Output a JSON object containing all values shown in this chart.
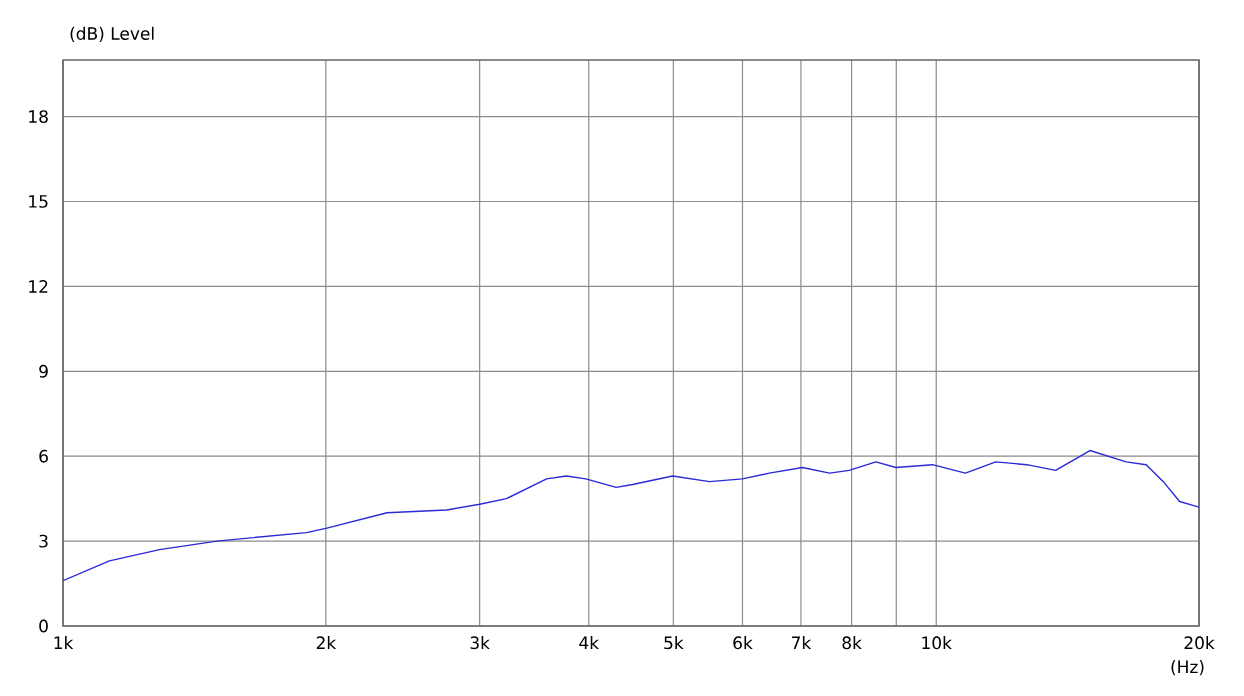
{
  "chart_data": {
    "type": "line",
    "xlabel": "(Hz)",
    "ylabel": "(dB)  Level",
    "log": "x",
    "grid": true,
    "xlim": [
      1000,
      20000
    ],
    "ylim": [
      0,
      20
    ],
    "xticks": [
      {
        "value": 1000,
        "label": "1k"
      },
      {
        "value": 2000,
        "label": "2k"
      },
      {
        "value": 3000,
        "label": "3k"
      },
      {
        "value": 4000,
        "label": "4k"
      },
      {
        "value": 5000,
        "label": "5k"
      },
      {
        "value": 6000,
        "label": "6k"
      },
      {
        "value": 7000,
        "label": "7k"
      },
      {
        "value": 8000,
        "label": "8k"
      },
      {
        "value": 9000,
        "label": null
      },
      {
        "value": 10000,
        "label": "10k"
      },
      {
        "value": 20000,
        "label": "20k"
      }
    ],
    "yticks": [
      0,
      3,
      6,
      9,
      12,
      15,
      18
    ],
    "series": [
      {
        "color": "#2a2ad8",
        "x": [
          1000,
          1130,
          1290,
          1500,
          1900,
          2000,
          2350,
          2750,
          3000,
          3220,
          3580,
          3770,
          3970,
          4300,
          4490,
          4990,
          5500,
          6000,
          6440,
          7030,
          7550,
          7950,
          8530,
          8990,
          9900,
          10800,
          11700,
          12700,
          13700,
          15000,
          16500,
          17400,
          18200,
          19000,
          20000
        ],
        "values": [
          1.6,
          2.3,
          2.7,
          3.0,
          3.3,
          3.45,
          4.0,
          4.1,
          4.3,
          4.5,
          5.2,
          5.3,
          5.2,
          4.9,
          5.0,
          5.3,
          5.1,
          5.2,
          5.4,
          5.6,
          5.4,
          5.5,
          5.8,
          5.6,
          5.7,
          5.4,
          5.8,
          5.7,
          5.5,
          6.2,
          5.8,
          5.7,
          5.1,
          4.4,
          4.2
        ]
      }
    ]
  }
}
